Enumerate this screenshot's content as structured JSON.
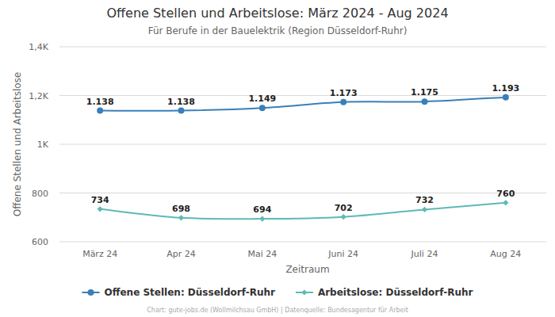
{
  "chart_data": {
    "type": "line",
    "title": "Offene Stellen und Arbeitslose: März 2024 - Aug 2024",
    "subtitle": "Für Berufe in der Bauelektrik (Region Düsseldorf-Ruhr)",
    "x_label": "Zeitraum",
    "y_label": "Offene Stellen und Arbeitslose",
    "source": "Chart: gute-jobs.de (Wollmilchsau GmbH) | Datenquelle: Bundesagentur für Arbeit",
    "categories": [
      "März 24",
      "Apr 24",
      "Mai 24",
      "Juni 24",
      "Juli 24",
      "Aug 24"
    ],
    "series": [
      {
        "name": "Offene Stellen: Düsseldorf-Ruhr",
        "color": "#3a7fb8",
        "marker": "circle",
        "line_style": "solid",
        "values": [
          1138,
          1138,
          1149,
          1173,
          1175,
          1193
        ],
        "value_labels": [
          "1.138",
          "1.138",
          "1.149",
          "1.173",
          "1.175",
          "1.193"
        ]
      },
      {
        "name": "Arbeitslose: Düsseldorf-Ruhr",
        "color": "#5cbab5",
        "marker": "diamond",
        "line_style": "solid",
        "values": [
          734,
          698,
          694,
          702,
          732,
          760
        ]
      }
    ],
    "ylim": [
      600,
      1400
    ],
    "yticks": [
      600,
      800,
      {
        "value": 1000,
        "label": "1K"
      },
      {
        "value": 1200,
        "label": "1,2K"
      },
      {
        "value": 1400,
        "label": "1,4K"
      }
    ],
    "grid": true,
    "legend": "bottom",
    "data_labels": true
  }
}
